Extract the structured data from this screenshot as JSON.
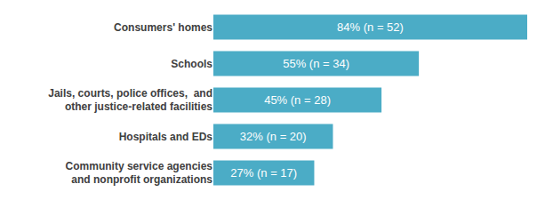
{
  "chart_data": {
    "type": "bar",
    "orientation": "horizontal",
    "categories": [
      "Consumers' homes",
      "Schools",
      "Jails, courts, police offices,  and\nother justice-related facilities",
      "Hospitals and EDs",
      "Community service agencies\nand nonprofit organizations"
    ],
    "values": [
      84,
      55,
      45,
      32,
      27
    ],
    "value_labels": [
      "84% (n = 52)",
      "55% (n = 34)",
      "45% (n = 28)",
      "32% (n = 20)",
      "27% (n = 17)"
    ],
    "data_labels": true,
    "color": "#4bacc6",
    "xlim": [
      0,
      84
    ],
    "tick_labels": "y",
    "grid": false
  }
}
